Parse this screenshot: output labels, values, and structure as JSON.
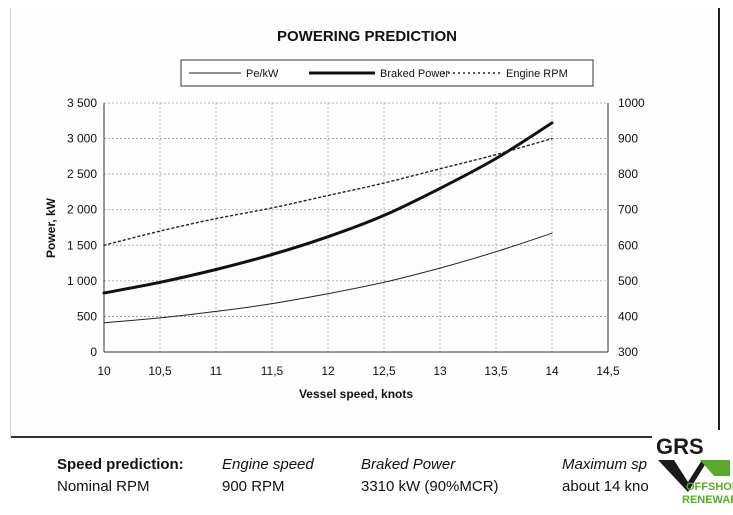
{
  "chart_data": {
    "type": "line",
    "title": "POWERING PREDICTION",
    "xlabel": "Vessel speed, knots",
    "ylabel": "Power, kW",
    "xlim": [
      10,
      14.5
    ],
    "ylim": [
      0,
      3500
    ],
    "y2lim": [
      300,
      1000
    ],
    "x_ticks": [
      "10",
      "10,5",
      "11",
      "11,5",
      "12",
      "12,5",
      "13",
      "13,5",
      "14",
      "14,5"
    ],
    "y_ticks": [
      "0",
      "500",
      "1 000",
      "1 500",
      "2 000",
      "2 500",
      "3 000",
      "3 500"
    ],
    "y2_ticks": [
      "300",
      "400",
      "500",
      "600",
      "700",
      "800",
      "900",
      "1000"
    ],
    "grid": true,
    "legend_position": "top",
    "series": [
      {
        "name": "Pe/kW",
        "axis": "left",
        "style": "thin",
        "color": "#222222",
        "x": [
          10,
          10.5,
          11,
          11.5,
          12,
          12.5,
          13,
          13.5,
          14
        ],
        "values": [
          410,
          480,
          570,
          680,
          820,
          980,
          1180,
          1410,
          1670
        ]
      },
      {
        "name": "Braked Power",
        "axis": "left",
        "style": "thick",
        "color": "#111111",
        "x": [
          10,
          10.5,
          11,
          11.5,
          12,
          12.5,
          13,
          13.5,
          14
        ],
        "values": [
          830,
          980,
          1160,
          1370,
          1620,
          1920,
          2300,
          2720,
          3220
        ]
      },
      {
        "name": "Engine RPM",
        "axis": "right",
        "style": "dotted",
        "color": "#222222",
        "x": [
          10,
          10.5,
          11,
          11.5,
          12,
          12.5,
          13,
          13.5,
          14
        ],
        "values": [
          600,
          640,
          675,
          705,
          740,
          775,
          815,
          855,
          900
        ]
      }
    ]
  },
  "footer": {
    "speed_prediction_label": "Speed prediction:",
    "speed_prediction_value": "Nominal RPM",
    "engine_speed_label": "Engine speed",
    "engine_speed_value": "900 RPM",
    "braked_power_label": "Braked Power",
    "braked_power_value": "3310 kW (90%MCR)",
    "maximum_speed_label": "Maximum sp",
    "maximum_speed_value": "about 14 kno"
  },
  "logo": {
    "text_top": "GRS",
    "text_mid": "OFFSHORE",
    "text_bottom": "RENEWABLES",
    "colors": {
      "dark": "#1a1a1a",
      "green": "#5aa82e"
    }
  }
}
